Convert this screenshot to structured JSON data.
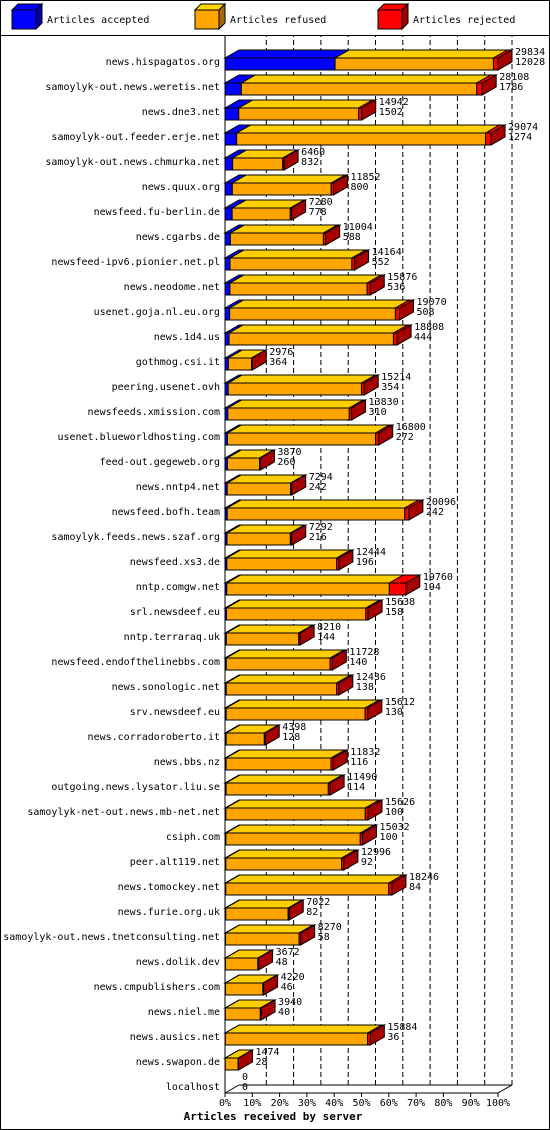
{
  "chart_data": {
    "type": "bar",
    "orientation": "horizontal",
    "stacked": "percent",
    "legend": [
      "Articles accepted",
      "Articles refused",
      "Articles rejected"
    ],
    "xlabel": "Articles received by server",
    "xticks": [
      "0%",
      "10%",
      "20%",
      "30%",
      "40%",
      "50%",
      "60%",
      "70%",
      "80%",
      "90%",
      "100%"
    ],
    "xlim": [
      0,
      100
    ],
    "grid": "vertical dashed at every 10%",
    "colors": {
      "accepted": "#0000ff",
      "refused": "#ffa500",
      "rejected": "#ff0000"
    },
    "categories": [
      "news.hispagatos.org",
      "samoylyk-out.news.weretis.net",
      "news.dne3.net",
      "samoylyk-out.feeder.erje.net",
      "samoylyk-out.news.chmurka.net",
      "news.quux.org",
      "newsfeed.fu-berlin.de",
      "news.cgarbs.de",
      "newsfeed-ipv6.pionier.net.pl",
      "news.neodome.net",
      "usenet.goja.nl.eu.org",
      "news.1d4.us",
      "gothmog.csi.it",
      "peering.usenet.ovh",
      "newsfeeds.xmission.com",
      "usenet.blueworldhosting.com",
      "feed-out.gegeweb.org",
      "news.nntp4.net",
      "newsfeed.bofh.team",
      "samoylyk.feeds.news.szaf.org",
      "newsfeed.xs3.de",
      "nntp.comgw.net",
      "srl.newsdeef.eu",
      "nntp.terraraq.uk",
      "newsfeed.endofthelinebbs.com",
      "news.sonologic.net",
      "srv.newsdeef.eu",
      "news.corradoroberto.it",
      "news.bbs.nz",
      "outgoing.news.lysator.liu.se",
      "samoylyk-net-out.news.mb-net.net",
      "csiph.com",
      "peer.alt119.net",
      "news.tomockey.net",
      "news.furie.org.uk",
      "samoylyk-out.news.tnetconsulting.net",
      "news.dolik.dev",
      "news.cmpublishers.com",
      "news.niel.me",
      "news.ausics.net",
      "news.swapon.de",
      "localhost"
    ],
    "received_total": [
      29834,
      28108,
      14942,
      29074,
      6460,
      11852,
      7280,
      11004,
      14164,
      15876,
      19070,
      18808,
      2976,
      15214,
      13830,
      16800,
      3870,
      7294,
      20096,
      7292,
      12444,
      19760,
      15638,
      8210,
      11728,
      12436,
      15612,
      4398,
      11832,
      11490,
      15626,
      15032,
      12996,
      18246,
      7022,
      8270,
      3672,
      4220,
      3940,
      15884,
      1474,
      0
    ],
    "accepted": [
      12028,
      1786,
      1502,
      1274,
      832,
      800,
      778,
      588,
      552,
      536,
      508,
      444,
      364,
      354,
      310,
      272,
      260,
      242,
      242,
      216,
      196,
      194,
      158,
      144,
      140,
      138,
      130,
      128,
      116,
      114,
      100,
      100,
      92,
      84,
      82,
      58,
      48,
      46,
      40,
      36,
      28,
      0
    ],
    "rejected": [
      500,
      600,
      350,
      600,
      150,
      250,
      150,
      250,
      300,
      350,
      450,
      400,
      80,
      300,
      250,
      350,
      100,
      120,
      450,
      150,
      250,
      1800,
      250,
      150,
      250,
      250,
      300,
      100,
      250,
      200,
      300,
      250,
      250,
      350,
      120,
      180,
      80,
      80,
      80,
      300,
      40,
      0
    ]
  }
}
